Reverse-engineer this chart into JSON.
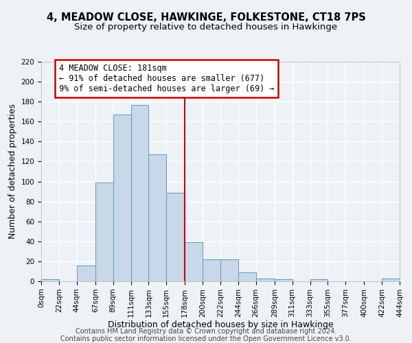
{
  "title": "4, MEADOW CLOSE, HAWKINGE, FOLKESTONE, CT18 7PS",
  "subtitle": "Size of property relative to detached houses in Hawkinge",
  "xlabel": "Distribution of detached houses by size in Hawkinge",
  "ylabel": "Number of detached properties",
  "bin_edges": [
    0,
    22,
    44,
    67,
    89,
    111,
    133,
    155,
    178,
    200,
    222,
    244,
    266,
    289,
    311,
    333,
    355,
    377,
    400,
    422,
    444
  ],
  "bar_heights": [
    2,
    0,
    16,
    99,
    167,
    177,
    127,
    89,
    39,
    22,
    22,
    9,
    3,
    2,
    0,
    2,
    0,
    0,
    0,
    3
  ],
  "bar_color": "#c8d8e8",
  "bar_edgecolor": "#5a9abf",
  "vline_x": 178,
  "vline_color": "#cc0000",
  "ylim": [
    0,
    220
  ],
  "yticks": [
    0,
    20,
    40,
    60,
    80,
    100,
    120,
    140,
    160,
    180,
    200,
    220
  ],
  "xtick_labels": [
    "0sqm",
    "22sqm",
    "44sqm",
    "67sqm",
    "89sqm",
    "111sqm",
    "133sqm",
    "155sqm",
    "178sqm",
    "200sqm",
    "222sqm",
    "244sqm",
    "266sqm",
    "289sqm",
    "311sqm",
    "333sqm",
    "355sqm",
    "377sqm",
    "400sqm",
    "422sqm",
    "444sqm"
  ],
  "annotation_text": "4 MEADOW CLOSE: 181sqm\n← 91% of detached houses are smaller (677)\n9% of semi-detached houses are larger (69) →",
  "annotation_box_color": "#ffffff",
  "annotation_box_edgecolor": "#cc0000",
  "footer1": "Contains HM Land Registry data © Crown copyright and database right 2024.",
  "footer2": "Contains public sector information licensed under the Open Government Licence v3.0.",
  "background_color": "#eef2f6",
  "grid_color": "#ffffff",
  "title_fontsize": 10.5,
  "subtitle_fontsize": 9.5,
  "axis_label_fontsize": 9,
  "tick_fontsize": 7.5,
  "footer_fontsize": 7,
  "annotation_fontsize": 8.5
}
